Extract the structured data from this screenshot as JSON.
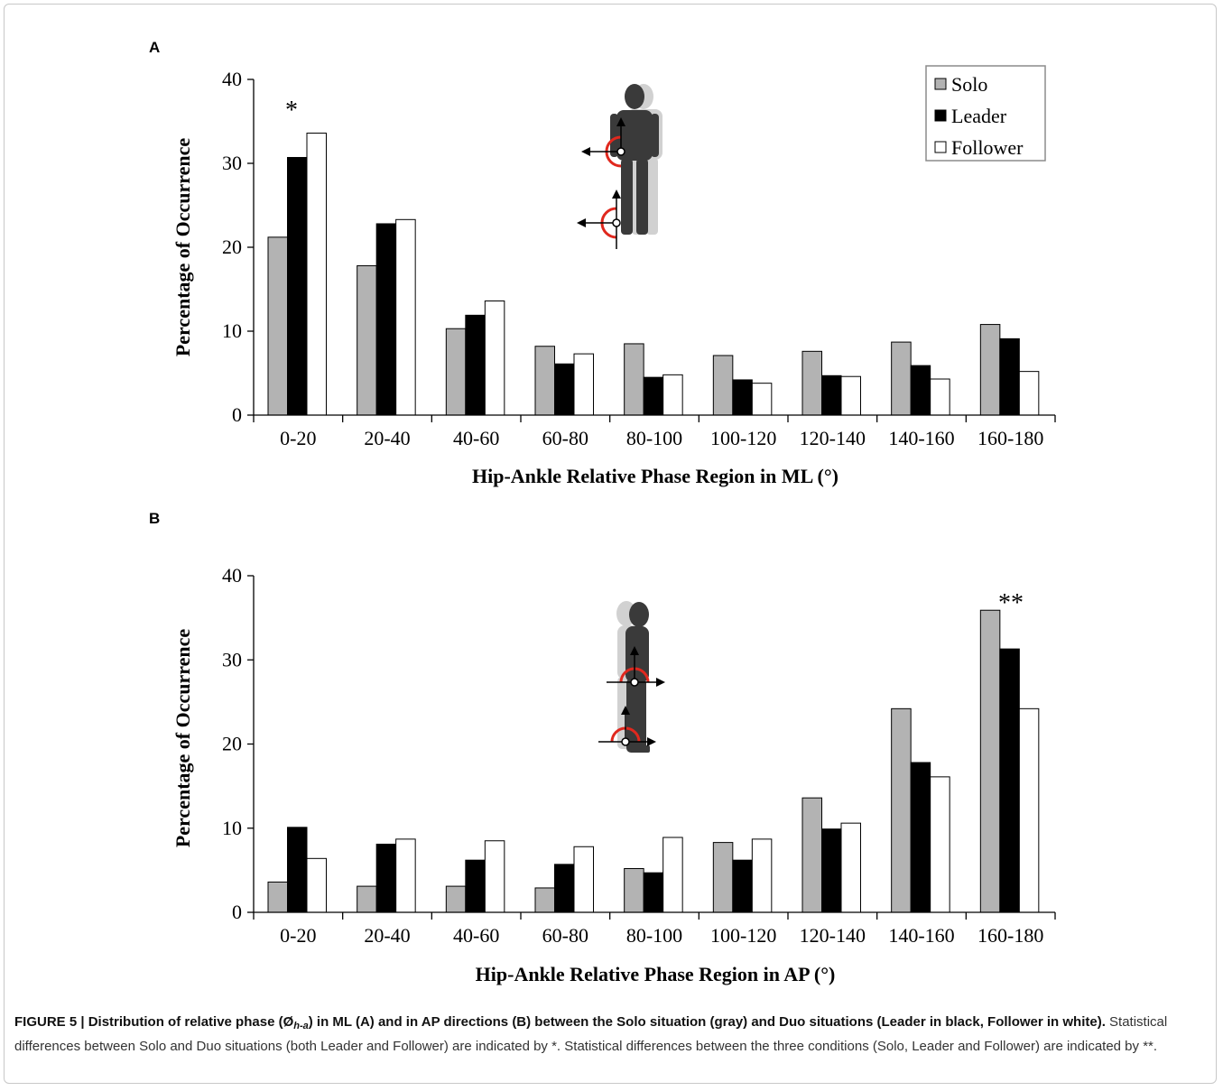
{
  "figure": {
    "caption_label": "FIGURE 5 | Distribution of relative phase (Ø",
    "caption_sub": "h-a",
    "caption_bold_rest": ") in ML (A) and in AP directions (B) between the Solo situation (gray) and Duo situations (Leader in black, Follower in white).",
    "caption_text": " Statistical differences between Solo and Duo situations (both Leader and Follower) are indicated by *. Statistical differences between the three conditions (Solo, Leader and Follower) are indicated by **."
  },
  "colors": {
    "solo": "#b3b3b3",
    "leader": "#000000",
    "follower": "#ffffff",
    "arc": "#e0281e",
    "figure_dark": "#3a3a3a",
    "figure_light": "#9a9a9a"
  },
  "icons": {
    "panel_a": "standing-person-frontal-icon",
    "panel_b": "standing-person-sagittal-icon"
  },
  "chart_data": [
    {
      "panel": "A",
      "type": "bar",
      "categories": [
        "0-20",
        "20-40",
        "40-60",
        "60-80",
        "80-100",
        "100-120",
        "120-140",
        "140-160",
        "160-180"
      ],
      "series": [
        {
          "name": "Solo",
          "values": [
            21.2,
            17.8,
            10.3,
            8.2,
            8.5,
            7.1,
            7.6,
            8.7,
            10.8
          ]
        },
        {
          "name": "Leader",
          "values": [
            30.7,
            22.8,
            11.9,
            6.1,
            4.5,
            4.2,
            4.7,
            5.9,
            9.1
          ]
        },
        {
          "name": "Follower",
          "values": [
            33.6,
            23.3,
            13.6,
            7.3,
            4.8,
            3.8,
            4.6,
            4.3,
            5.2
          ]
        }
      ],
      "ylabel": "Percentage of Occurrence",
      "xlabel": "Hip-Ankle Relative Phase Region in ML (°)",
      "yticks": [
        "0",
        "10",
        "20",
        "30",
        "40"
      ],
      "ylim": [
        0,
        40
      ],
      "legend": "top-right",
      "grid": false,
      "annotations": [
        {
          "category": "0-20",
          "text": "*"
        }
      ]
    },
    {
      "panel": "B",
      "type": "bar",
      "categories": [
        "0-20",
        "20-40",
        "40-60",
        "60-80",
        "80-100",
        "100-120",
        "120-140",
        "140-160",
        "160-180"
      ],
      "series": [
        {
          "name": "Solo",
          "values": [
            3.6,
            3.1,
            3.1,
            2.9,
            5.2,
            8.3,
            13.6,
            24.2,
            35.9
          ]
        },
        {
          "name": "Leader",
          "values": [
            10.1,
            8.1,
            6.2,
            5.7,
            4.7,
            6.2,
            9.9,
            17.8,
            31.3
          ]
        },
        {
          "name": "Follower",
          "values": [
            6.4,
            8.7,
            8.5,
            7.8,
            8.9,
            8.7,
            10.6,
            16.1,
            24.2
          ]
        }
      ],
      "ylabel": "Percentage of Occurrence",
      "xlabel": "Hip-Ankle Relative Phase Region in AP (°)",
      "yticks": [
        "0",
        "10",
        "20",
        "30",
        "40"
      ],
      "ylim": [
        0,
        40
      ],
      "legend": "none",
      "grid": false,
      "annotations": [
        {
          "category": "160-180",
          "text": "**"
        }
      ]
    }
  ]
}
